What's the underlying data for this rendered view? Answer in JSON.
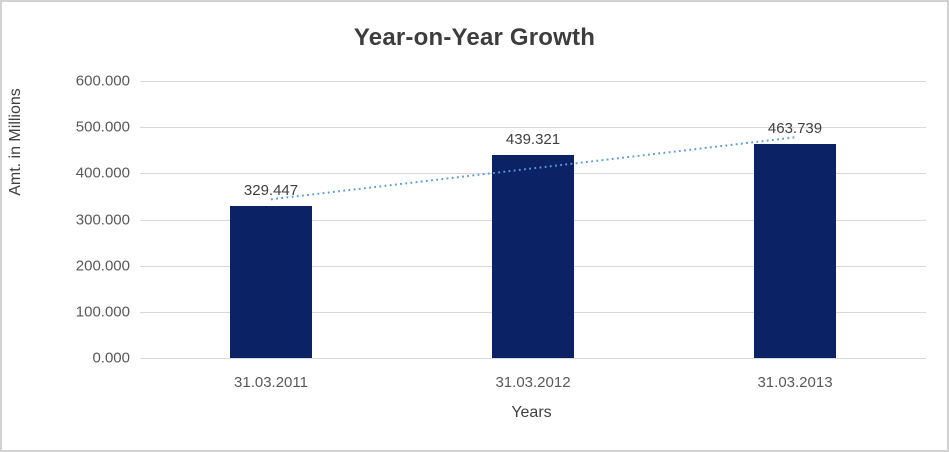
{
  "chart_data": {
    "type": "bar",
    "title": "Year-on-Year Growth",
    "categories": [
      "31.03.2011",
      "31.03.2012",
      "31.03.2013"
    ],
    "values": [
      329.447,
      439.321,
      463.739
    ],
    "data_labels": [
      "329.447",
      "439.321",
      "463.739"
    ],
    "xlabel": "Years",
    "ylabel": "Amt. in Millions",
    "ylim": [
      0,
      600
    ],
    "ytick_step": 100,
    "ytick_labels": [
      "0.000",
      "100.000",
      "200.000",
      "300.000",
      "400.000",
      "500.000",
      "600.000"
    ],
    "grid": true,
    "legend": "none",
    "bar_color": "#0b2264",
    "gridline_color": "#d9d9d9",
    "trendline": {
      "kind": "linear-fit",
      "style": "dotted",
      "color": "#5b9bd5",
      "endpoint_values": [
        343.7,
        478.0
      ]
    }
  },
  "window": {
    "background": "#ffffff",
    "border_color": "#d2d2d2"
  }
}
